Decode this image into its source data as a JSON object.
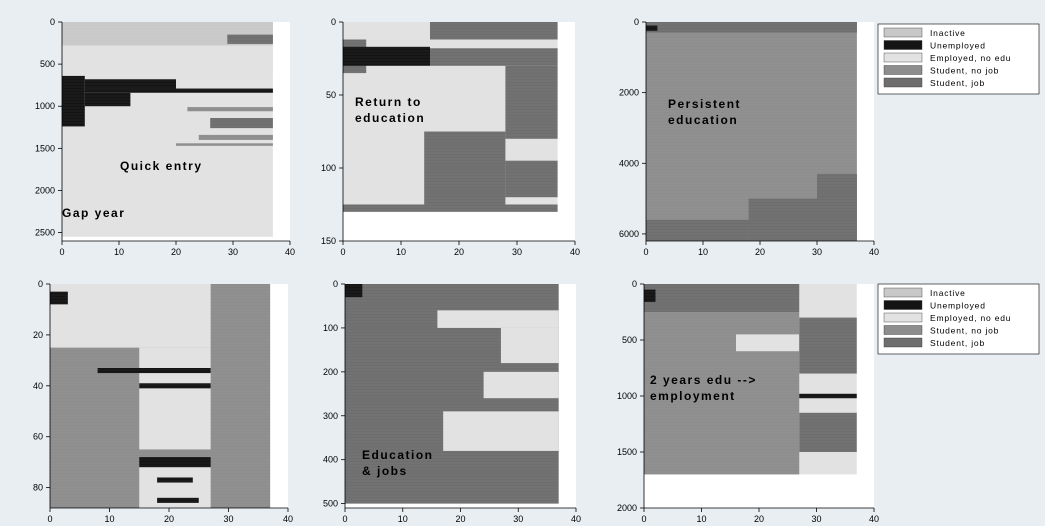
{
  "colors": {
    "Inactive": "#c8c8c8",
    "Unemployed": "#141414",
    "Employed, no edu": "#e2e2e2",
    "Student, no job": "#8d8d8d",
    "Student, job": "#6e6e6e"
  },
  "legend": [
    "Inactive",
    "Unemployed",
    "Employed, no edu",
    "Student, no job",
    "Student, job"
  ],
  "chart_data": [
    {
      "type": "heatmap",
      "title": "",
      "annotation": [
        "Quick entry"
      ],
      "xlim": [
        0,
        40
      ],
      "xticks": [
        0,
        10,
        20,
        30,
        40
      ],
      "ylim": [
        0,
        2600
      ],
      "yticks": [
        0,
        500,
        1000,
        1500,
        2000,
        2500
      ],
      "ymax_data": 2550,
      "base": "Employed, no edu",
      "blocks": [
        {
          "x0": 0,
          "x1": 37,
          "y0": 0,
          "y1": 280,
          "state": "Inactive"
        },
        {
          "x0": 0,
          "x1": 37,
          "y0": 280,
          "y1": 640,
          "state": "Employed, no edu"
        },
        {
          "x0": 0,
          "x1": 4,
          "y0": 640,
          "y1": 1240,
          "state": "Unemployed"
        },
        {
          "x0": 4,
          "x1": 37,
          "y0": 790,
          "y1": 840,
          "state": "Unemployed"
        },
        {
          "x0": 4,
          "x1": 20,
          "y0": 680,
          "y1": 790,
          "state": "Unemployed"
        },
        {
          "x0": 4,
          "x1": 12,
          "y0": 840,
          "y1": 1000,
          "state": "Unemployed"
        },
        {
          "x0": 29,
          "x1": 37,
          "y0": 150,
          "y1": 260,
          "state": "Student, job"
        },
        {
          "x0": 22,
          "x1": 37,
          "y0": 1010,
          "y1": 1060,
          "state": "Student, no job"
        },
        {
          "x0": 26,
          "x1": 37,
          "y0": 1140,
          "y1": 1260,
          "state": "Student, job"
        },
        {
          "x0": 24,
          "x1": 37,
          "y0": 1340,
          "y1": 1400,
          "state": "Student, no job"
        },
        {
          "x0": 20,
          "x1": 37,
          "y0": 1440,
          "y1": 1470,
          "state": "Student, no job"
        }
      ]
    },
    {
      "type": "heatmap",
      "title": "",
      "annotation": [
        "Return to",
        "education"
      ],
      "xlim": [
        0,
        40
      ],
      "xticks": [
        0,
        10,
        20,
        30,
        40
      ],
      "ylim": [
        0,
        150
      ],
      "yticks": [
        0,
        50,
        100,
        150
      ],
      "ymax_data": 130,
      "base": "Employed, no edu",
      "blocks": [
        {
          "x0": 0,
          "x1": 15,
          "y0": 0,
          "y1": 12,
          "state": "Employed, no edu"
        },
        {
          "x0": 15,
          "x1": 37,
          "y0": 0,
          "y1": 12,
          "state": "Student, job"
        },
        {
          "x0": 0,
          "x1": 4,
          "y0": 12,
          "y1": 35,
          "state": "Student, job"
        },
        {
          "x0": 0,
          "x1": 15,
          "y0": 17,
          "y1": 30,
          "state": "Unemployed"
        },
        {
          "x0": 15,
          "x1": 37,
          "y0": 18,
          "y1": 30,
          "state": "Student, job"
        },
        {
          "x0": 28,
          "x1": 37,
          "y0": 30,
          "y1": 80,
          "state": "Student, job"
        },
        {
          "x0": 14,
          "x1": 28,
          "y0": 75,
          "y1": 125,
          "state": "Student, job"
        },
        {
          "x0": 28,
          "x1": 37,
          "y0": 95,
          "y1": 120,
          "state": "Student, job"
        },
        {
          "x0": 0,
          "x1": 37,
          "y0": 125,
          "y1": 130,
          "state": "Student, job"
        }
      ]
    },
    {
      "type": "heatmap",
      "title": "",
      "annotation": [
        "Persistent",
        "education"
      ],
      "xlim": [
        0,
        40
      ],
      "xticks": [
        0,
        10,
        20,
        30,
        40
      ],
      "ylim": [
        0,
        6200
      ],
      "yticks": [
        0,
        2000,
        4000,
        6000
      ],
      "ymax_data": 6200,
      "base": "Student, no job",
      "blocks": [
        {
          "x0": 0,
          "x1": 37,
          "y0": 0,
          "y1": 300,
          "state": "Student, job"
        },
        {
          "x0": 0,
          "x1": 2,
          "y0": 100,
          "y1": 250,
          "state": "Unemployed"
        },
        {
          "x0": 30,
          "x1": 37,
          "y0": 4300,
          "y1": 6200,
          "state": "Student, job"
        },
        {
          "x0": 18,
          "x1": 30,
          "y0": 5000,
          "y1": 6200,
          "state": "Student, job"
        },
        {
          "x0": 0,
          "x1": 18,
          "y0": 5600,
          "y1": 6200,
          "state": "Student, job"
        }
      ]
    },
    {
      "type": "heatmap",
      "title": "",
      "annotation": [
        "Gap year"
      ],
      "xlim": [
        0,
        40
      ],
      "xticks": [
        0,
        10,
        20,
        30,
        40
      ],
      "ylim": [
        0,
        88
      ],
      "yticks": [
        0,
        20,
        40,
        60,
        80
      ],
      "ymax_data": 88,
      "base": "Student, no job",
      "blocks": [
        {
          "x0": 0,
          "x1": 27,
          "y0": 0,
          "y1": 25,
          "state": "Employed, no edu"
        },
        {
          "x0": 0,
          "x1": 3,
          "y0": 3,
          "y1": 8,
          "state": "Unemployed"
        },
        {
          "x0": 15,
          "x1": 27,
          "y0": 25,
          "y1": 65,
          "state": "Employed, no edu"
        },
        {
          "x0": 8,
          "x1": 27,
          "y0": 33,
          "y1": 35,
          "state": "Unemployed"
        },
        {
          "x0": 15,
          "x1": 27,
          "y0": 39,
          "y1": 41,
          "state": "Unemployed"
        },
        {
          "x0": 15,
          "x1": 27,
          "y0": 68,
          "y1": 72,
          "state": "Unemployed"
        },
        {
          "x0": 15,
          "x1": 27,
          "y0": 72,
          "y1": 88,
          "state": "Employed, no edu"
        },
        {
          "x0": 18,
          "x1": 24,
          "y0": 76,
          "y1": 78,
          "state": "Unemployed"
        },
        {
          "x0": 18,
          "x1": 25,
          "y0": 84,
          "y1": 86,
          "state": "Unemployed"
        }
      ]
    },
    {
      "type": "heatmap",
      "title": "",
      "annotation": [
        "Education",
        "& jobs"
      ],
      "xlim": [
        0,
        40
      ],
      "xticks": [
        0,
        10,
        20,
        30,
        40
      ],
      "ylim": [
        0,
        510
      ],
      "yticks": [
        0,
        100,
        200,
        300,
        400,
        500
      ],
      "ymax_data": 500,
      "base": "Student, job",
      "blocks": [
        {
          "x0": 0,
          "x1": 3,
          "y0": 0,
          "y1": 30,
          "state": "Unemployed"
        },
        {
          "x0": 16,
          "x1": 37,
          "y0": 60,
          "y1": 100,
          "state": "Employed, no edu"
        },
        {
          "x0": 27,
          "x1": 37,
          "y0": 100,
          "y1": 180,
          "state": "Employed, no edu"
        },
        {
          "x0": 24,
          "x1": 37,
          "y0": 200,
          "y1": 260,
          "state": "Employed, no edu"
        },
        {
          "x0": 17,
          "x1": 37,
          "y0": 290,
          "y1": 380,
          "state": "Employed, no edu"
        }
      ]
    },
    {
      "type": "heatmap",
      "title": "",
      "annotation": [
        "2 years edu -->",
        "employment"
      ],
      "xlim": [
        0,
        40
      ],
      "xticks": [
        0,
        10,
        20,
        30,
        40
      ],
      "ylim": [
        0,
        2000
      ],
      "yticks": [
        0,
        500,
        1000,
        1500,
        2000
      ],
      "ymax_data": 1700,
      "base": "Employed, no edu",
      "blocks": [
        {
          "x0": 0,
          "x1": 27,
          "y0": 0,
          "y1": 250,
          "state": "Student, job"
        },
        {
          "x0": 0,
          "x1": 2,
          "y0": 50,
          "y1": 160,
          "state": "Unemployed"
        },
        {
          "x0": 0,
          "x1": 27,
          "y0": 250,
          "y1": 1700,
          "state": "Student, no job"
        },
        {
          "x0": 27,
          "x1": 37,
          "y0": 980,
          "y1": 1020,
          "state": "Unemployed"
        },
        {
          "x0": 16,
          "x1": 27,
          "y0": 450,
          "y1": 600,
          "state": "Employed, no edu"
        },
        {
          "x0": 27,
          "x1": 37,
          "y0": 300,
          "y1": 800,
          "state": "Student, job"
        },
        {
          "x0": 27,
          "x1": 37,
          "y0": 1150,
          "y1": 1500,
          "state": "Student, job"
        }
      ]
    }
  ]
}
